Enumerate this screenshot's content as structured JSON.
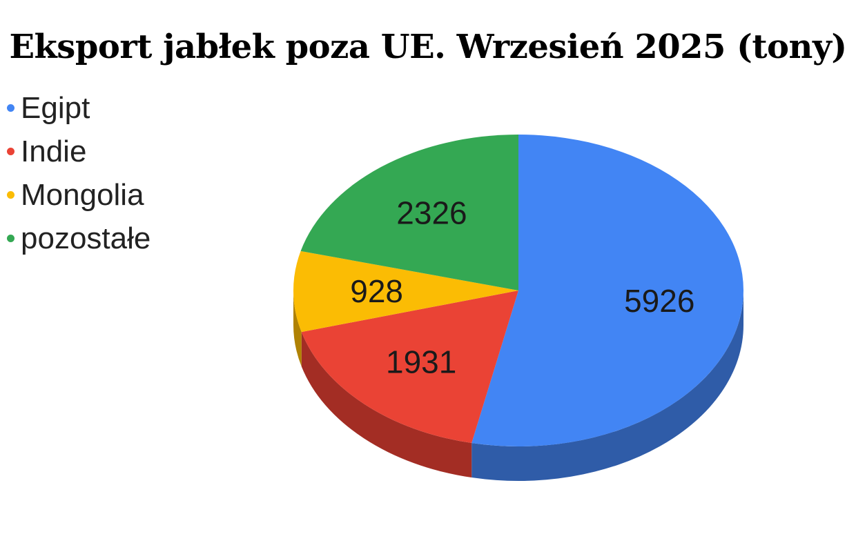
{
  "chart_data": {
    "type": "pie",
    "title": "Eksport jabłek poza UE. Wrzesień 2025 (tony)",
    "legend_position": "left",
    "series": [
      {
        "name": "Egipt",
        "value": 5926,
        "color": "#4285f4",
        "side_color": "#2f5ca8"
      },
      {
        "name": "Indie",
        "value": 1931,
        "color": "#ea4335",
        "side_color": "#a32d24"
      },
      {
        "name": "Mongolia",
        "value": 928,
        "color": "#fbbc04",
        "side_color": "#b08203"
      },
      {
        "name": "pozostałe",
        "value": 2326,
        "color": "#34a853",
        "side_color": "#24753a"
      }
    ]
  }
}
